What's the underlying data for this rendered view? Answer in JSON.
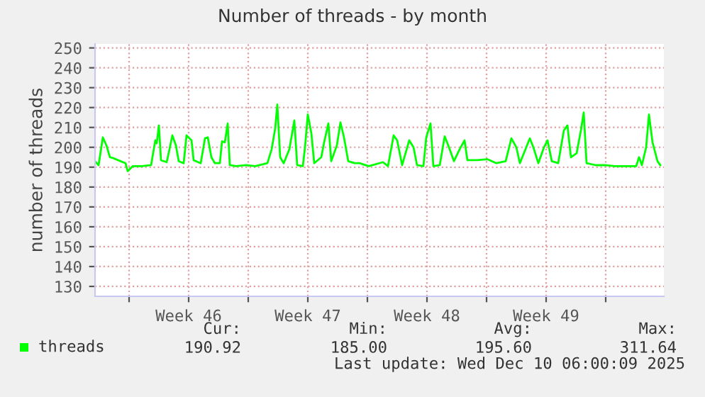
{
  "chart_data": {
    "type": "line",
    "title": "Number of threads - by month",
    "ylabel": "number of threads",
    "x": [
      "2025-11-08T00:00",
      "2025-11-08T05:00",
      "2025-11-08T11:00",
      "2025-11-08T16:00",
      "2025-11-08T21:00",
      "2025-11-09T02:00",
      "2025-11-09T12:00",
      "2025-11-09T19:00",
      "2025-11-09T22:00",
      "2025-11-10T05:00",
      "2025-11-10T18:00",
      "2025-11-11T07:00",
      "2025-11-11T13:00",
      "2025-11-11T15:00",
      "2025-11-11T18:00",
      "2025-11-11T21:00",
      "2025-11-12T05:00",
      "2025-11-12T09:00",
      "2025-11-12T13:00",
      "2025-11-12T18:00",
      "2025-11-12T22:00",
      "2025-11-13T05:00",
      "2025-11-13T09:00",
      "2025-11-13T16:00",
      "2025-11-13T19:00",
      "2025-11-14T05:00",
      "2025-11-14T11:00",
      "2025-11-14T15:00",
      "2025-11-14T20:00",
      "2025-11-15T01:00",
      "2025-11-15T08:00",
      "2025-11-15T11:00",
      "2025-11-15T15:00",
      "2025-11-15T19:00",
      "2025-11-15T22:00",
      "2025-11-16T07:00",
      "2025-11-16T21:00",
      "2025-11-17T10:00",
      "2025-11-18T03:00",
      "2025-11-18T09:00",
      "2025-11-18T14:00",
      "2025-11-18T17:00",
      "2025-11-18T21:00",
      "2025-11-19T02:00",
      "2025-11-19T10:00",
      "2025-11-19T17:00",
      "2025-11-19T21:00",
      "2025-11-20T05:00",
      "2025-11-20T08:00",
      "2025-11-20T12:00",
      "2025-11-20T17:00",
      "2025-11-20T21:00",
      "2025-11-21T07:00",
      "2025-11-21T11:00",
      "2025-11-21T17:00",
      "2025-11-21T21:00",
      "2025-11-22T05:00",
      "2025-11-22T10:00",
      "2025-11-22T15:00",
      "2025-11-22T21:00",
      "2025-11-23T06:00",
      "2025-11-23T13:00",
      "2025-11-24T02:00",
      "2025-11-24T22:00",
      "2025-11-25T05:00",
      "2025-11-25T13:00",
      "2025-11-25T18:00",
      "2025-11-26T01:00",
      "2025-11-26T11:00",
      "2025-11-26T17:00",
      "2025-11-26T22:00",
      "2025-11-27T07:00",
      "2025-11-27T11:00",
      "2025-11-27T17:00",
      "2025-11-27T21:00",
      "2025-11-28T06:00",
      "2025-11-28T13:00",
      "2025-11-28T19:00",
      "2025-11-29T02:00",
      "2025-11-29T10:00",
      "2025-11-29T17:00",
      "2025-11-29T21:00",
      "2025-11-30T11:00",
      "2025-12-01T01:00",
      "2025-12-01T14:00",
      "2025-12-02T03:00",
      "2025-12-02T11:00",
      "2025-12-02T18:00",
      "2025-12-02T23:00",
      "2025-12-03T13:00",
      "2025-12-03T18:00",
      "2025-12-04T01:00",
      "2025-12-04T09:00",
      "2025-12-04T14:00",
      "2025-12-04T20:00",
      "2025-12-05T05:00",
      "2025-12-05T13:00",
      "2025-12-05T18:00",
      "2025-12-05T23:00",
      "2025-12-06T07:00",
      "2025-12-06T13:00",
      "2025-12-06T17:00",
      "2025-12-06T21:00",
      "2025-12-07T10:00",
      "2025-12-07T23:00",
      "2025-12-08T13:00",
      "2025-12-09T02:00",
      "2025-12-09T19:00",
      "2025-12-09T23:00",
      "2025-12-10T03:00",
      "2025-12-10T09:00",
      "2025-12-10T13:00",
      "2025-12-10T18:00",
      "2025-12-11T01:00",
      "2025-12-11T05:00"
    ],
    "series": [
      {
        "name": "threads",
        "color": "#00ff00",
        "values": [
          193,
          191,
          205,
          201,
          195,
          194.5,
          193,
          192,
          188,
          190.5,
          190.5,
          191,
          203.5,
          202,
          211,
          193.5,
          192.5,
          199,
          206,
          201,
          193,
          192,
          206,
          203.5,
          193.5,
          192,
          204.5,
          205,
          195,
          192,
          192,
          203,
          202.5,
          212,
          191,
          190.5,
          191,
          190.5,
          192,
          199,
          209.5,
          221.5,
          195,
          192,
          199,
          213.5,
          191,
          190.5,
          200,
          216.5,
          207,
          192,
          195,
          202.5,
          212,
          193,
          201,
          212.5,
          205,
          193,
          192,
          192,
          190.5,
          192.5,
          190.5,
          206,
          203.5,
          191,
          203.5,
          200,
          191,
          190.5,
          205,
          212,
          190.5,
          191,
          205.5,
          200,
          193,
          199,
          203.5,
          193.5,
          193.5,
          194,
          192,
          193,
          204.5,
          200,
          192,
          204.5,
          200,
          192,
          200,
          203.5,
          193,
          192,
          208.5,
          211,
          195,
          197,
          208.5,
          217.5,
          192,
          191,
          191,
          190.5,
          190.5,
          190.5,
          195,
          191,
          200,
          216.5,
          202.5,
          193,
          191
        ]
      }
    ],
    "xlim": [
      "2025-11-08T00:00",
      "2025-12-11T10:00"
    ],
    "xticks": [
      {
        "value": "2025-11-10",
        "label": null
      },
      {
        "value": "2025-11-13T12:00",
        "label": "Week 46"
      },
      {
        "value": "2025-11-17",
        "label": null
      },
      {
        "value": "2025-11-20T12:00",
        "label": "Week 47"
      },
      {
        "value": "2025-11-24",
        "label": null
      },
      {
        "value": "2025-11-27T12:00",
        "label": "Week 48"
      },
      {
        "value": "2025-12-01",
        "label": null
      },
      {
        "value": "2025-12-04T12:00",
        "label": "Week 49"
      },
      {
        "value": "2025-12-08",
        "label": null
      }
    ],
    "ylim": [
      125,
      252
    ],
    "yticks": [
      130,
      140,
      150,
      160,
      170,
      180,
      190,
      200,
      210,
      220,
      230,
      240,
      250
    ],
    "grid": true,
    "legend": "bottom left",
    "annotations": [
      "Cur:\n190.92",
      "Min:\n185.00",
      "Avg:\n195.60",
      "Max:\n311.64",
      "Last update: Wed Dec 10 06:00:09 2025"
    ]
  }
}
